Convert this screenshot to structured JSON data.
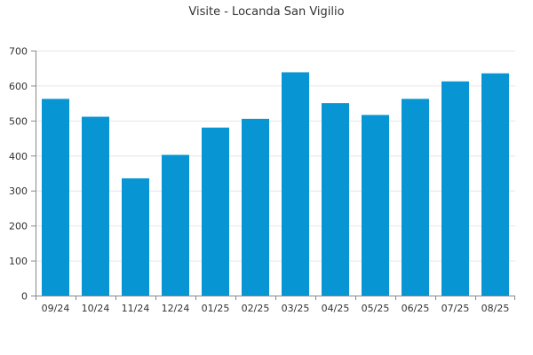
{
  "chart_data": {
    "type": "bar",
    "title": "Visite - Locanda San Vigilio",
    "xlabel": "",
    "ylabel": "",
    "categories": [
      "09/24",
      "10/24",
      "11/24",
      "12/24",
      "01/25",
      "02/25",
      "03/25",
      "04/25",
      "05/25",
      "06/25",
      "07/25",
      "08/25"
    ],
    "values": [
      562,
      511,
      335,
      402,
      480,
      505,
      638,
      550,
      516,
      562,
      612,
      635
    ],
    "ylim": [
      0,
      700
    ],
    "yticks": [
      0,
      100,
      200,
      300,
      400,
      500,
      600,
      700
    ],
    "grid": true,
    "legend": "none",
    "colors": {
      "bar": "#0795d4",
      "grid": "#e6e6e6",
      "axis": "#888888",
      "text": "#333333"
    }
  }
}
